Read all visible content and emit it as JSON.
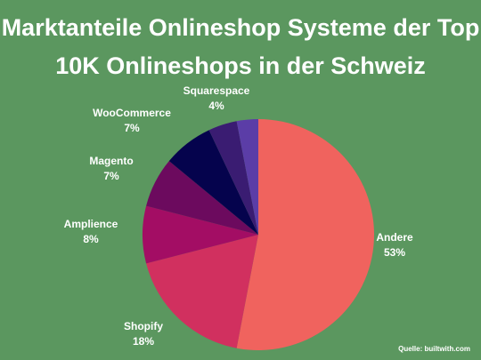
{
  "chart_data": {
    "type": "pie",
    "title": "Marktanteile Onlineshop Systeme der Top 10K Onlineshops in der Schweiz",
    "title_lines": [
      "Marktanteile Onlineshop Systeme der Top",
      "10K Onlineshops in der Schweiz"
    ],
    "slices": [
      {
        "label": "Andere",
        "value": 53,
        "display": "53%",
        "color": "#f0635e"
      },
      {
        "label": "Shopify",
        "value": 18,
        "display": "18%",
        "color": "#d1305f"
      },
      {
        "label": "Amplience",
        "value": 8,
        "display": "8%",
        "color": "#a30d64"
      },
      {
        "label": "Magento",
        "value": 7,
        "display": "7%",
        "color": "#6c0a5e"
      },
      {
        "label": "WooCommerce",
        "value": 7,
        "display": "7%",
        "color": "#05034d"
      },
      {
        "label": "Squarespace",
        "value": 4,
        "display": "4%",
        "color": "#3a1c72"
      },
      {
        "label": "",
        "value": 3,
        "display": "",
        "color": "#5b3da7"
      }
    ],
    "source": "Quelle: builtwith.com"
  },
  "colors": {
    "background": "#5b975f",
    "text": "#ffffff"
  }
}
